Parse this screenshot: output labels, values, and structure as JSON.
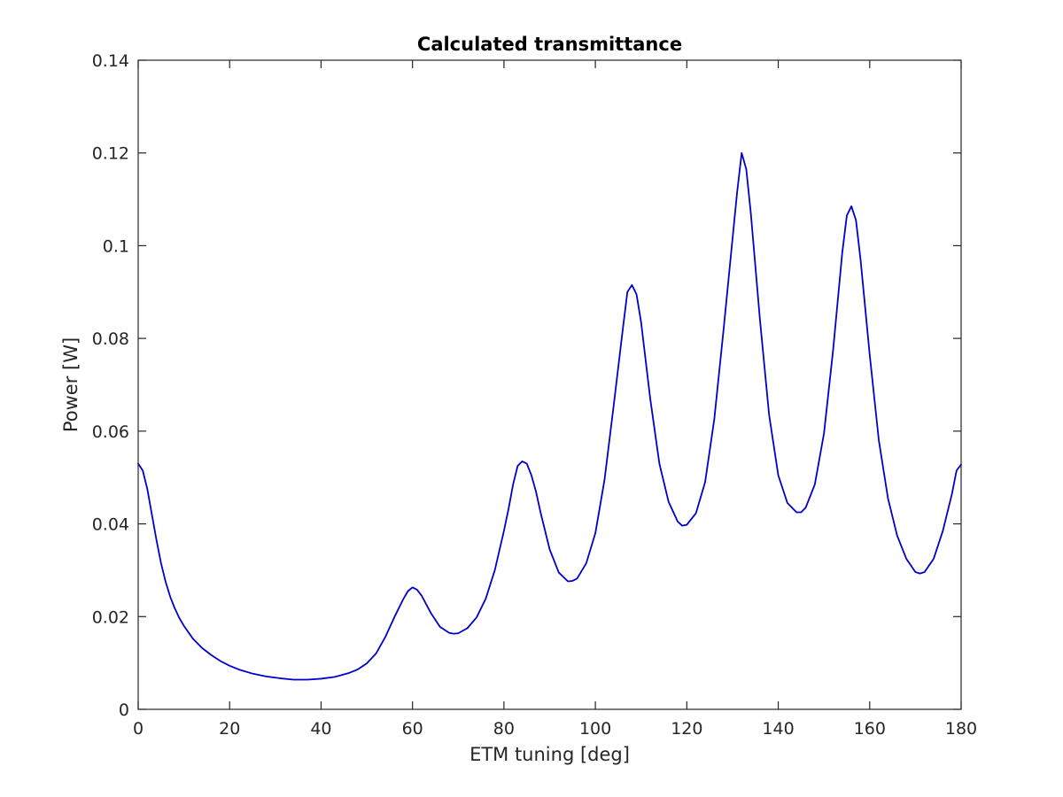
{
  "chart_data": {
    "type": "line",
    "title": "Calculated transmittance",
    "xlabel": "ETM tuning [deg]",
    "ylabel": "Power [W]",
    "xlim": [
      0,
      180
    ],
    "ylim": [
      0,
      0.14
    ],
    "xticks": [
      0,
      20,
      40,
      60,
      80,
      100,
      120,
      140,
      160,
      180
    ],
    "xtick_labels": [
      "0",
      "20",
      "40",
      "60",
      "80",
      "100",
      "120",
      "140",
      "160",
      "180"
    ],
    "yticks": [
      0,
      0.02,
      0.04,
      0.06,
      0.08,
      0.1,
      0.12,
      0.14
    ],
    "ytick_labels": [
      "0",
      "0.02",
      "0.04",
      "0.06",
      "0.08",
      "0.1",
      "0.12",
      "0.14"
    ],
    "grid": false,
    "legend": "none",
    "series": [
      {
        "color": "#0000cd",
        "x": [
          0,
          1,
          2,
          3,
          4,
          5,
          6,
          7,
          8,
          9,
          10,
          12,
          14,
          16,
          18,
          20,
          22,
          25,
          28,
          31,
          34,
          37,
          40,
          43,
          46,
          48,
          50,
          52,
          54,
          56,
          58,
          59,
          60,
          61,
          62,
          64,
          66,
          68,
          69,
          70,
          72,
          74,
          76,
          78,
          80,
          81,
          82,
          83,
          84,
          85,
          86,
          87,
          88,
          90,
          92,
          94,
          95,
          96,
          98,
          100,
          102,
          104,
          106,
          107,
          108,
          109,
          110,
          112,
          114,
          116,
          118,
          119,
          120,
          122,
          124,
          126,
          128,
          130,
          131,
          132,
          133,
          134,
          136,
          138,
          140,
          142,
          144,
          145,
          146,
          148,
          150,
          152,
          154,
          155,
          156,
          157,
          158,
          160,
          162,
          164,
          166,
          168,
          170,
          171,
          172,
          174,
          176,
          178,
          179,
          180
        ],
        "y": [
          0.053,
          0.0515,
          0.0475,
          0.042,
          0.0365,
          0.0315,
          0.0275,
          0.0243,
          0.0218,
          0.0197,
          0.018,
          0.0152,
          0.0132,
          0.0117,
          0.0104,
          0.0094,
          0.0086,
          0.0077,
          0.0071,
          0.0067,
          0.0064,
          0.0064,
          0.0066,
          0.007,
          0.0078,
          0.0086,
          0.0099,
          0.012,
          0.0155,
          0.0198,
          0.0238,
          0.0255,
          0.0263,
          0.0258,
          0.0245,
          0.0208,
          0.0178,
          0.0165,
          0.0163,
          0.0164,
          0.0175,
          0.0198,
          0.0238,
          0.03,
          0.0385,
          0.0432,
          0.0485,
          0.0525,
          0.0535,
          0.053,
          0.0505,
          0.047,
          0.0425,
          0.0345,
          0.0295,
          0.0276,
          0.0277,
          0.0282,
          0.0315,
          0.038,
          0.0495,
          0.0655,
          0.082,
          0.09,
          0.0915,
          0.0895,
          0.0835,
          0.067,
          0.053,
          0.0448,
          0.0405,
          0.0396,
          0.0398,
          0.0423,
          0.049,
          0.0625,
          0.0815,
          0.1015,
          0.1115,
          0.12,
          0.1165,
          0.107,
          0.084,
          0.0635,
          0.0505,
          0.0445,
          0.0425,
          0.0425,
          0.0435,
          0.0485,
          0.0595,
          0.0775,
          0.0985,
          0.1065,
          0.1085,
          0.1055,
          0.097,
          0.0765,
          0.058,
          0.0455,
          0.0375,
          0.0325,
          0.0296,
          0.0293,
          0.0296,
          0.0325,
          0.0385,
          0.0465,
          0.0515,
          0.0528
        ]
      }
    ]
  }
}
